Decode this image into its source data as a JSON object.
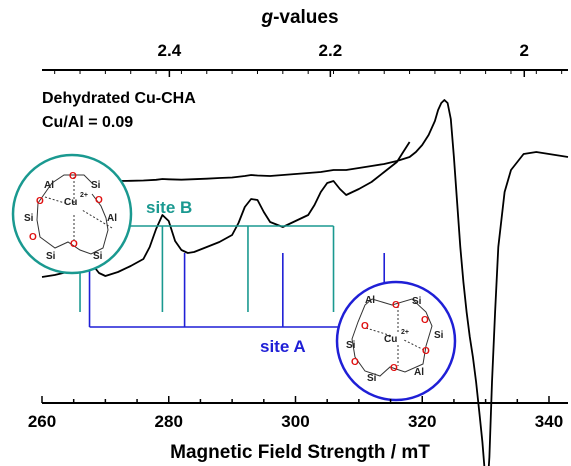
{
  "chart_data": {
    "type": "line",
    "title": "",
    "xlabel": "Magnetic Field Strength / mT",
    "xlim": [
      260,
      343
    ],
    "x_ticks": [
      260,
      280,
      300,
      320,
      340
    ],
    "top_axis": {
      "label_prefix": "g",
      "label_suffix": "-values",
      "ticks": [
        {
          "label": "2.4",
          "field": 280.1
        },
        {
          "label": "2.2",
          "field": 305.5
        },
        {
          "label": "2",
          "field": 336.1
        }
      ]
    },
    "annotations": {
      "sample": "Dehydrated Cu-CHA",
      "ratio": "Cu/Al = 0.09"
    },
    "series": [
      {
        "name": "",
        "color": "#000000",
        "x": [
          260,
          262,
          264,
          265,
          266,
          267,
          268,
          270,
          272,
          274,
          276,
          278,
          279,
          280,
          282,
          284,
          286,
          288,
          290,
          292,
          293,
          294,
          296,
          298,
          300,
          302,
          304,
          306,
          308,
          310,
          312,
          314,
          316,
          318,
          319,
          320,
          321,
          322,
          322.5,
          323,
          323.5,
          324,
          324.5,
          325,
          325.5,
          326,
          326.5,
          327,
          327.5,
          328,
          328.5,
          329,
          329.5,
          330,
          330.3,
          330.6,
          331,
          331.5,
          332,
          333,
          334,
          336,
          338,
          340,
          342,
          343
        ],
        "y": [
          0.145,
          0.147,
          0.15,
          0.155,
          0.162,
          0.158,
          0.155,
          0.158,
          0.16,
          0.162,
          0.165,
          0.172,
          0.18,
          0.177,
          0.173,
          0.178,
          0.183,
          0.19,
          0.195,
          0.21,
          0.22,
          0.215,
          0.21,
          0.22,
          0.23,
          0.24,
          0.25,
          0.27,
          0.27,
          0.29,
          0.31,
          0.33,
          0.36,
          0.4,
          0.45,
          0.52,
          0.62,
          0.76,
          0.87,
          0.94,
          0.97,
          0.94,
          0.78,
          0.4,
          -0.05,
          -0.5,
          -0.85,
          -1.15,
          -1.4,
          -1.6,
          -1.85,
          -2.15,
          -2.45,
          -2.85,
          -2.9,
          -2.6,
          -1.85,
          -1.15,
          -0.5,
          0.05,
          0.27,
          0.43,
          0.45,
          0.43,
          0.41,
          0.4
        ]
      },
      {
        "name": "",
        "color": "#000000",
        "x": [
          260,
          262,
          264,
          265,
          266,
          267,
          268,
          269,
          270,
          272,
          274,
          276,
          277,
          278,
          279,
          280,
          281,
          282,
          283,
          284,
          286,
          288,
          290,
          291,
          292,
          293,
          294,
          295,
          296,
          298,
          300,
          302,
          303,
          304,
          305,
          306,
          307,
          308,
          309,
          310,
          312,
          314,
          316,
          317,
          318
        ],
        "y": [
          -0.8,
          -0.78,
          -0.75,
          -0.6,
          -0.38,
          -0.5,
          -0.68,
          -0.76,
          -0.79,
          -0.75,
          -0.69,
          -0.62,
          -0.5,
          -0.32,
          -0.18,
          -0.24,
          -0.44,
          -0.53,
          -0.56,
          -0.55,
          -0.5,
          -0.45,
          -0.38,
          -0.26,
          -0.1,
          -0.02,
          -0.03,
          -0.15,
          -0.25,
          -0.3,
          -0.24,
          -0.18,
          -0.08,
          0.05,
          0.14,
          0.16,
          0.08,
          0.02,
          0.05,
          0.08,
          0.15,
          0.25,
          0.35,
          0.45,
          0.55
        ]
      }
    ],
    "site_b": {
      "label": "site B",
      "color": "#1a9990",
      "fields": [
        266,
        279,
        292.5,
        306
      ]
    },
    "site_a": {
      "label": "site A",
      "color": "#1f1fd6",
      "fields": [
        267.5,
        282.5,
        298,
        314
      ]
    },
    "structure_b": {
      "labels": [
        "Al",
        "O",
        "Si",
        "O",
        "O",
        "Si",
        "Al",
        "O",
        "Si",
        "O",
        "Si"
      ],
      "metal": "Cu",
      "charge": "2+"
    },
    "structure_a": {
      "labels": [
        "Al",
        "O",
        "Si",
        "O",
        "Si",
        "O",
        "O",
        "Si",
        "O",
        "Si",
        "O",
        "Al"
      ],
      "metal": "Cu",
      "charge": "2+"
    }
  }
}
